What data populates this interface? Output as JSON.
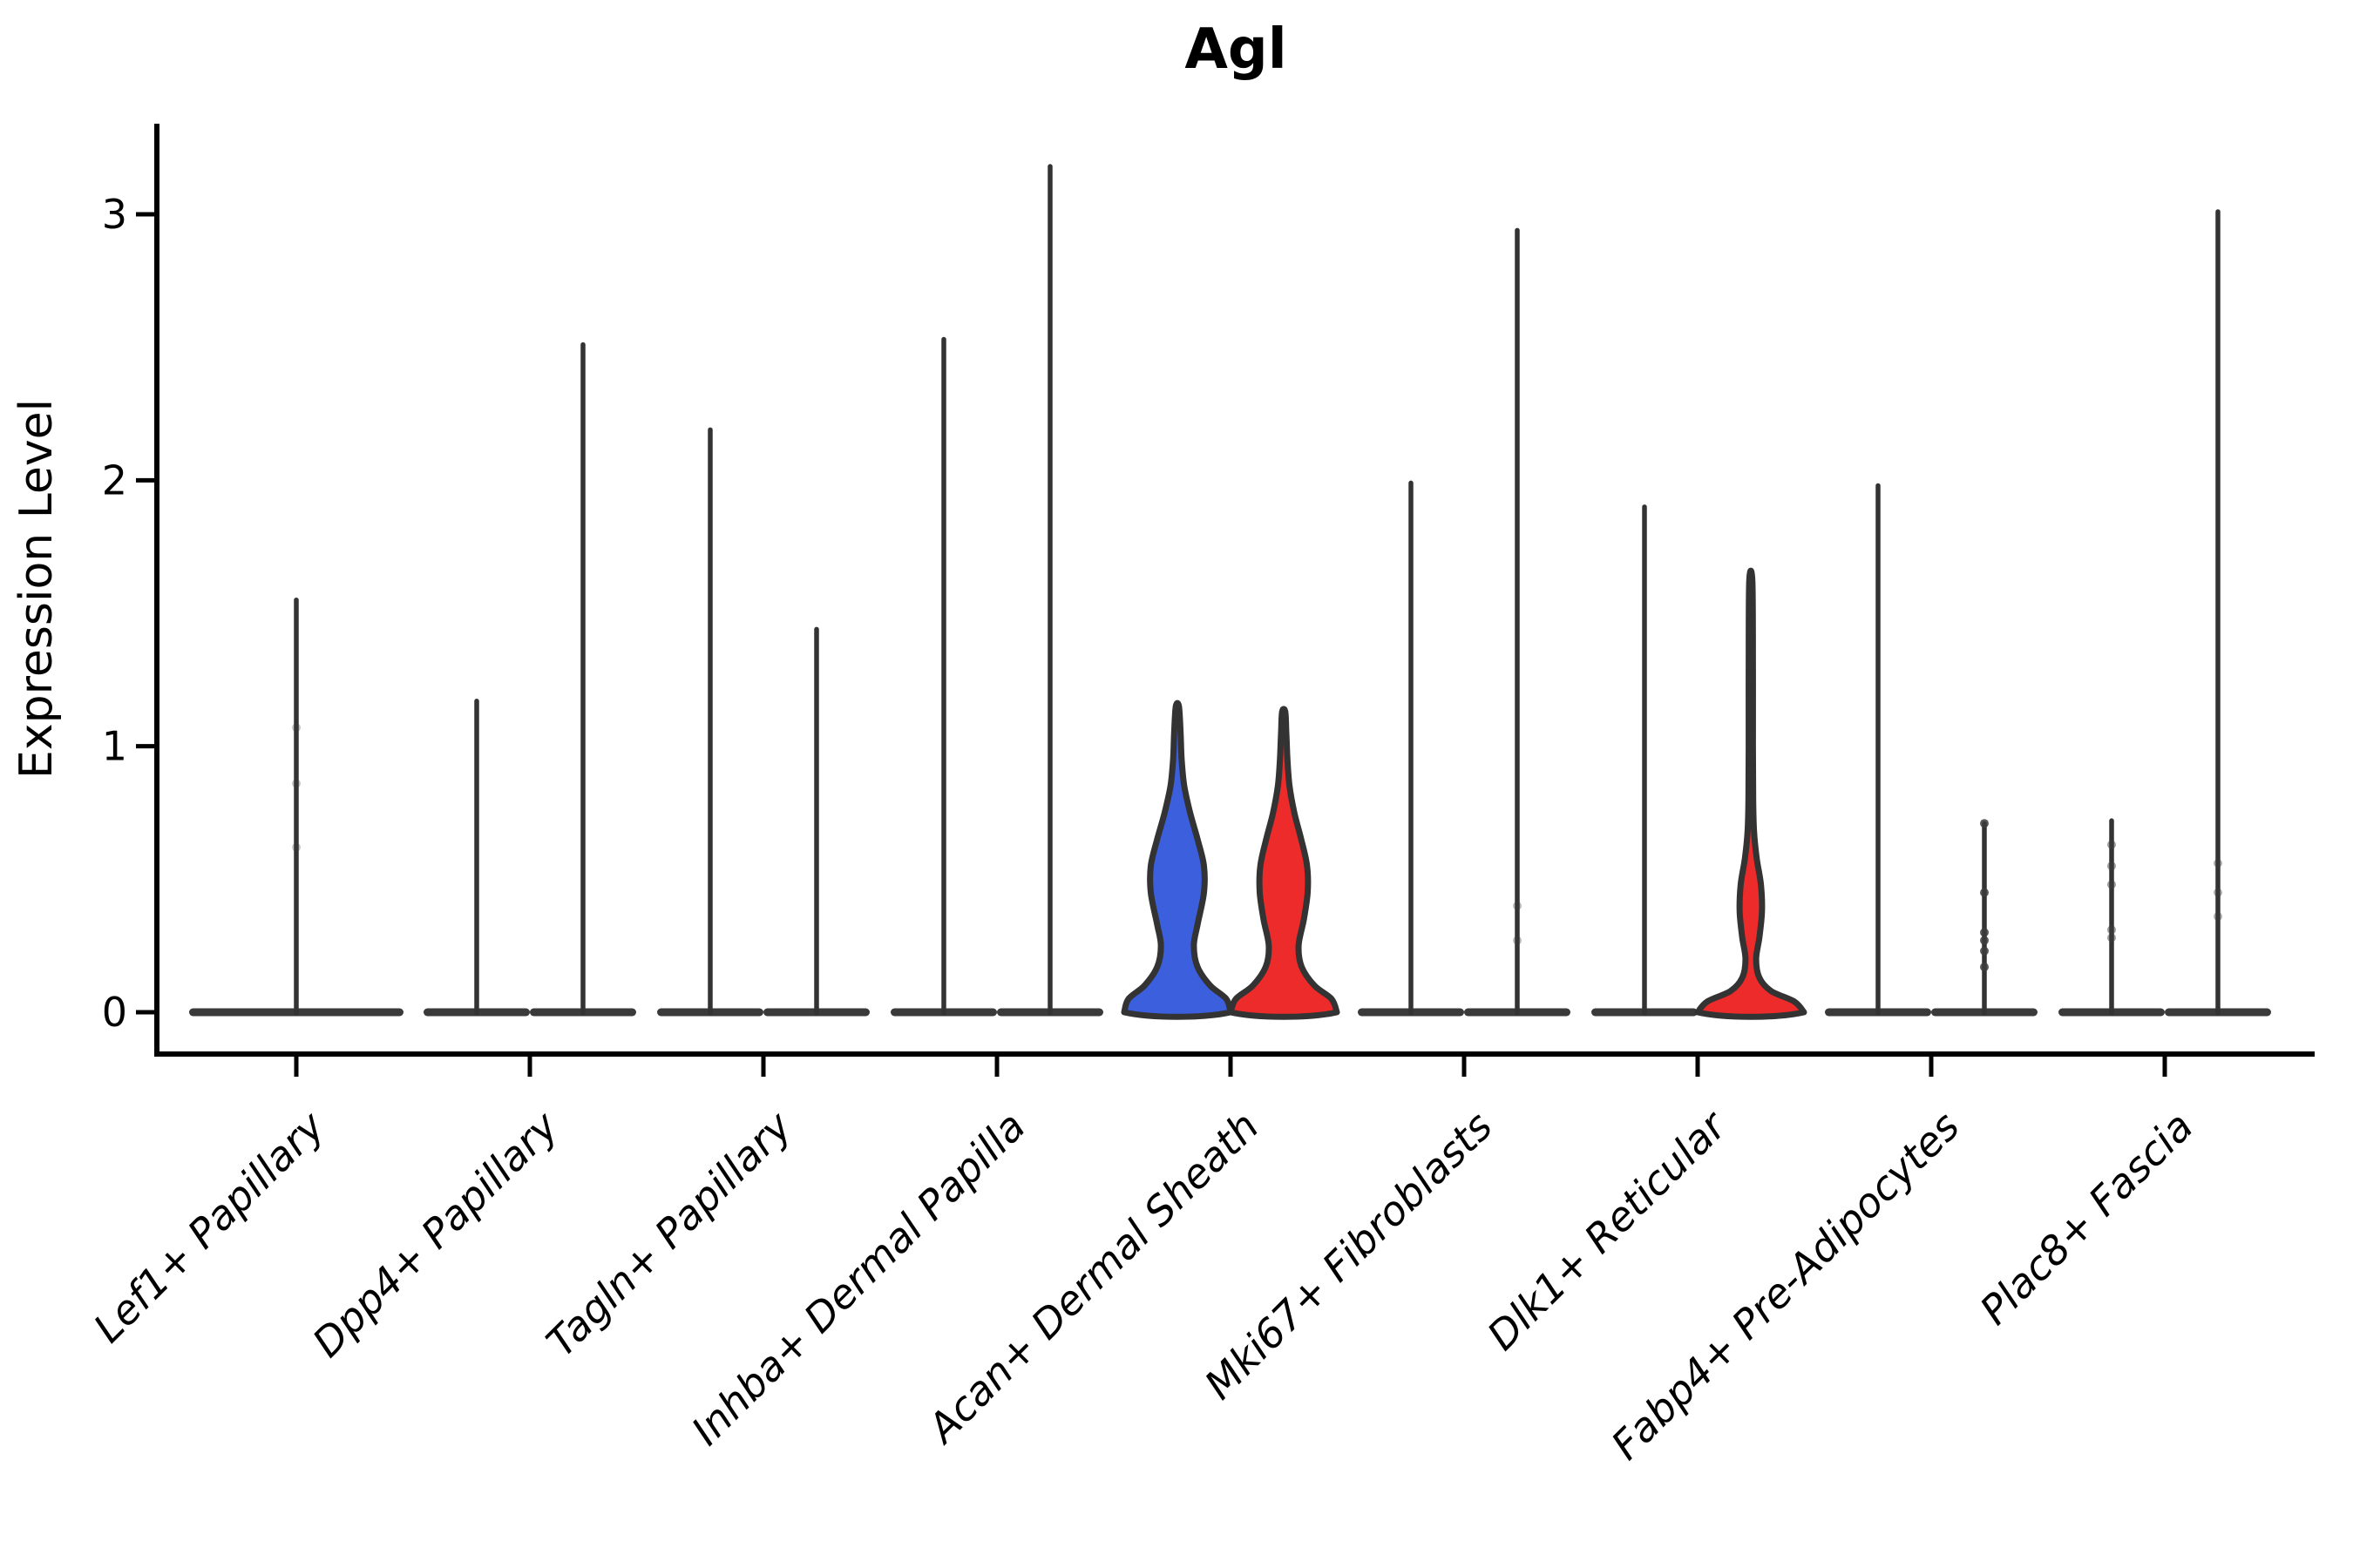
{
  "chart_data": {
    "type": "violin",
    "title": "Agl",
    "ylabel": "Expression Level",
    "yticks": [
      0,
      1,
      2,
      3
    ],
    "ylim": [
      -0.16,
      3.34
    ],
    "grid": false,
    "legend": "none",
    "x_tick_rotation_deg": 45,
    "categories": [
      "Lef1+ Papillary",
      "Dpp4+ Papillary",
      "Tagln+ Papillary",
      "Inhba+ Dermal Papilla",
      "Acan+ Dermal Sheath",
      "Mki67+ Fibroblasts",
      "Dlk1+ Reticular",
      "Fabp4+ Pre-Adipocytes",
      "Plac8+ Fascia"
    ],
    "colors": {
      "violin_blue": "#3b5fdd",
      "violin_red": "#ee2b2b",
      "outline": "#333333",
      "flat_body": "#3a3a3a",
      "axis": "#000000"
    },
    "violins": [
      {
        "category": 0,
        "slot": "full",
        "max": 1.55,
        "fill": null,
        "dots": [
          1.07,
          0.86,
          0.62
        ],
        "dots_opacity": 0.3
      },
      {
        "category": 1,
        "slot": "left",
        "max": 1.17,
        "fill": null
      },
      {
        "category": 1,
        "slot": "right",
        "max": 2.51,
        "fill": null
      },
      {
        "category": 2,
        "slot": "left",
        "max": 2.19,
        "fill": null
      },
      {
        "category": 2,
        "slot": "right",
        "max": 1.44,
        "fill": null
      },
      {
        "category": 3,
        "slot": "left",
        "max": 2.53,
        "fill": null
      },
      {
        "category": 3,
        "slot": "right",
        "max": 3.18,
        "fill": null
      },
      {
        "category": 4,
        "slot": "left",
        "max": 1.15,
        "fill": "#3b5fdd",
        "profile": [
          [
            0,
            1.0
          ],
          [
            0.05,
            0.92
          ],
          [
            0.1,
            0.62
          ],
          [
            0.17,
            0.38
          ],
          [
            0.25,
            0.31
          ],
          [
            0.33,
            0.38
          ],
          [
            0.45,
            0.5
          ],
          [
            0.55,
            0.5
          ],
          [
            0.65,
            0.38
          ],
          [
            0.75,
            0.24
          ],
          [
            0.85,
            0.13
          ],
          [
            0.95,
            0.08
          ],
          [
            1.05,
            0.06
          ],
          [
            1.15,
            0.03
          ]
        ]
      },
      {
        "category": 4,
        "slot": "right",
        "max": 1.13,
        "fill": "#ee2b2b",
        "profile": [
          [
            0,
            1.0
          ],
          [
            0.05,
            0.9
          ],
          [
            0.1,
            0.58
          ],
          [
            0.17,
            0.34
          ],
          [
            0.25,
            0.28
          ],
          [
            0.35,
            0.38
          ],
          [
            0.45,
            0.45
          ],
          [
            0.55,
            0.44
          ],
          [
            0.65,
            0.33
          ],
          [
            0.75,
            0.2
          ],
          [
            0.85,
            0.11
          ],
          [
            0.95,
            0.07
          ],
          [
            1.05,
            0.05
          ],
          [
            1.13,
            0.03
          ]
        ]
      },
      {
        "category": 5,
        "slot": "left",
        "max": 1.99,
        "fill": null
      },
      {
        "category": 5,
        "slot": "right",
        "max": 2.94,
        "fill": null,
        "dots": [
          0.4,
          0.27
        ],
        "dots_opacity": 0.35
      },
      {
        "category": 6,
        "slot": "left",
        "max": 1.9,
        "fill": null
      },
      {
        "category": 6,
        "slot": "right",
        "max": 1.62,
        "fill": "#ee2b2b",
        "profile": [
          [
            0,
            1.0
          ],
          [
            0.04,
            0.82
          ],
          [
            0.08,
            0.38
          ],
          [
            0.13,
            0.16
          ],
          [
            0.2,
            0.1
          ],
          [
            0.28,
            0.16
          ],
          [
            0.38,
            0.21
          ],
          [
            0.48,
            0.19
          ],
          [
            0.58,
            0.11
          ],
          [
            0.68,
            0.06
          ],
          [
            0.8,
            0.045
          ],
          [
            1.0,
            0.04
          ],
          [
            1.3,
            0.04
          ],
          [
            1.62,
            0.03
          ]
        ]
      },
      {
        "category": 7,
        "slot": "left",
        "max": 1.98,
        "fill": null
      },
      {
        "category": 7,
        "slot": "right",
        "max": 0.71,
        "fill": null,
        "dots": [
          0.71,
          0.45,
          0.3,
          0.27,
          0.23,
          0.17
        ],
        "dots_opacity": 0.85
      },
      {
        "category": 8,
        "slot": "left",
        "max": 0.72,
        "fill": null,
        "dots": [
          0.63,
          0.55,
          0.48,
          0.31,
          0.28
        ],
        "dots_opacity": 0.5
      },
      {
        "category": 8,
        "slot": "right",
        "max": 3.01,
        "fill": null,
        "dots": [
          0.56,
          0.45,
          0.36
        ],
        "dots_opacity": 0.4
      }
    ]
  }
}
